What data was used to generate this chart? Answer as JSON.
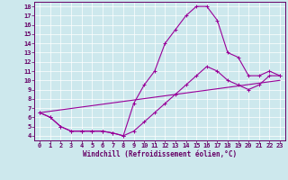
{
  "xlabel": "Windchill (Refroidissement éolien,°C)",
  "ylabel": "",
  "bg_color": "#cde8ed",
  "line_color": "#990099",
  "xlim": [
    -0.5,
    23.5
  ],
  "ylim": [
    3.5,
    18.5
  ],
  "xticks": [
    0,
    1,
    2,
    3,
    4,
    5,
    6,
    7,
    8,
    9,
    10,
    11,
    12,
    13,
    14,
    15,
    16,
    17,
    18,
    19,
    20,
    21,
    22,
    23
  ],
  "yticks": [
    4,
    5,
    6,
    7,
    8,
    9,
    10,
    11,
    12,
    13,
    14,
    15,
    16,
    17,
    18
  ],
  "curve1_x": [
    0,
    1,
    2,
    3,
    4,
    5,
    6,
    7,
    8,
    9,
    10,
    11,
    12,
    13,
    14,
    15,
    16,
    17,
    18,
    19,
    20,
    21,
    22,
    23
  ],
  "curve1_y": [
    6.5,
    6.0,
    5.0,
    4.5,
    4.5,
    4.5,
    4.5,
    4.3,
    4.0,
    7.5,
    9.5,
    11.0,
    14.0,
    15.5,
    17.0,
    18.0,
    18.0,
    16.5,
    13.0,
    12.5,
    10.5,
    10.5,
    11.0,
    10.5
  ],
  "curve2_x": [
    0,
    1,
    2,
    3,
    4,
    5,
    6,
    7,
    8,
    9,
    10,
    11,
    12,
    13,
    14,
    15,
    16,
    17,
    18,
    19,
    20,
    21,
    22,
    23
  ],
  "curve2_y": [
    6.5,
    6.0,
    5.0,
    4.5,
    4.5,
    4.5,
    4.5,
    4.3,
    4.0,
    4.5,
    5.5,
    6.5,
    7.5,
    8.5,
    9.5,
    10.5,
    11.5,
    11.0,
    10.0,
    9.5,
    9.0,
    9.5,
    10.5,
    10.5
  ],
  "curve3_x": [
    0,
    23
  ],
  "curve3_y": [
    6.5,
    10.0
  ],
  "marker": "+",
  "markersize": 3,
  "linewidth": 0.8,
  "font_color": "#660066",
  "tick_font_size": 5,
  "label_font_size": 5.5
}
